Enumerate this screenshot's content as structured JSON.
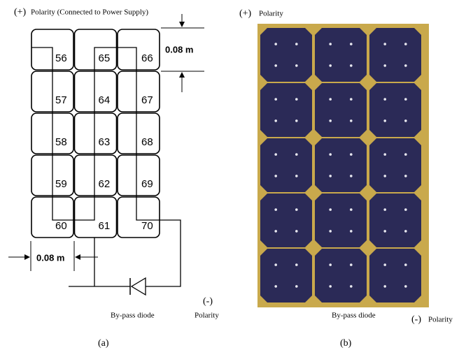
{
  "panel_a": {
    "polarity_plus": {
      "sign": "(+)",
      "label": "Polarity (Connected to Power Supply)"
    },
    "cell_height": "0.08 m",
    "cell_width": "0.08 m",
    "cells": [
      [
        "56",
        "65",
        "66"
      ],
      [
        "57",
        "64",
        "67"
      ],
      [
        "58",
        "63",
        "68"
      ],
      [
        "59",
        "62",
        "69"
      ],
      [
        "60",
        "61",
        "70"
      ]
    ],
    "diode_label": "By-pass diode",
    "polarity_minus": {
      "sign": "(-)",
      "label": "Polarity"
    },
    "caption": "(a)"
  },
  "panel_b": {
    "polarity_plus": {
      "sign": "(+)",
      "label": "Polarity"
    },
    "diode_label": "By-pass diode",
    "polarity_minus": {
      "sign": "(-)",
      "label": "Polarity"
    },
    "caption": "(b)"
  }
}
